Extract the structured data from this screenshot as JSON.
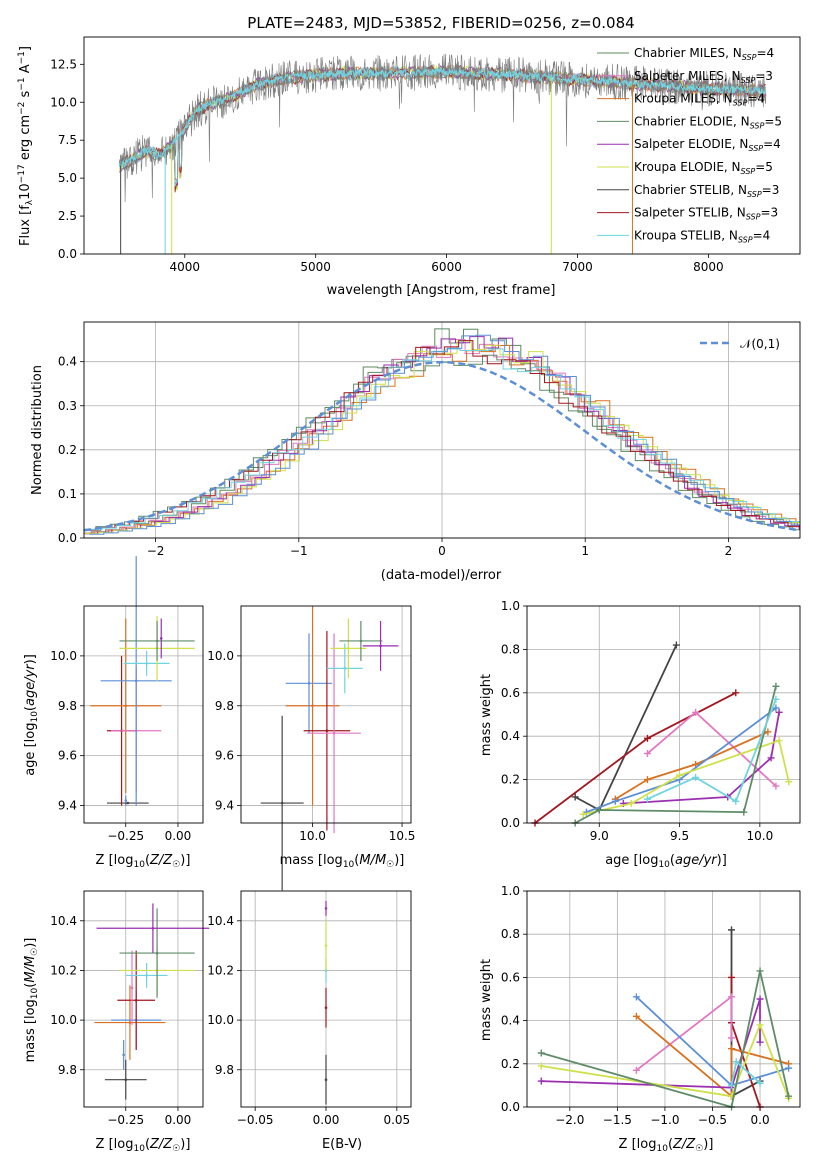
{
  "series_names": [
    "Chabrier MILES, N_SSP=4",
    "Salpeter MILES, N_SSP=3",
    "Kroupa MILES, N_SSP=4",
    "Chabrier ELODIE, N_SSP=5",
    "Salpeter ELODIE, N_SSP=4",
    "Kroupa ELODIE, N_SSP=5",
    "Chabrier STELIB, N_SSP=3",
    "Salpeter STELIB, N_SSP=3",
    "Kroupa STELIB, N_SSP=4"
  ],
  "colors": [
    "#5b8a5e",
    "#e377c2",
    "#d9711f",
    "#5f8c68",
    "#9a2fb0",
    "#cfe04a",
    "#444444",
    "#a3171f",
    "#6fd3e0",
    "#5c8fd6"
  ],
  "chart_data": [
    {
      "id": "spectrum",
      "type": "line",
      "title": "PLATE=2483, MJD=53852, FIBERID=0256, z=0.084",
      "xlabel": "wavelength [Angstrom, rest frame]",
      "ylabel": "Flux [f_λ 10^-17 erg cm^-2 s^-1 A^-1]",
      "xlim": [
        3230,
        8700
      ],
      "ylim": [
        0,
        14.3
      ],
      "xticks": [
        4000,
        5000,
        6000,
        7000,
        8000
      ],
      "yticks": [
        0.0,
        2.5,
        5.0,
        7.5,
        10.0,
        12.5
      ],
      "ytick_labels": [
        "0.0",
        "2.5",
        "5.0",
        "7.5",
        "10.0",
        "12.5"
      ],
      "legend": "top-right",
      "continuum": {
        "x": [
          3500,
          3600,
          3700,
          3800,
          3900,
          4000,
          4100,
          4200,
          4300,
          4400,
          4500,
          4600,
          4800,
          5000,
          5200,
          5500,
          6000,
          6500,
          7000,
          7500,
          8000,
          8500
        ],
        "y": [
          5.8,
          6.2,
          6.8,
          6.5,
          7.2,
          8.3,
          9.5,
          9.9,
          10.1,
          10.5,
          11.0,
          11.3,
          11.6,
          11.8,
          11.9,
          11.9,
          12.0,
          11.8,
          11.5,
          11.2,
          10.9,
          10.7
        ]
      }
    },
    {
      "id": "residuals",
      "type": "line",
      "xlabel": "(data-model)/error",
      "ylabel": "Normed distribution",
      "xlim": [
        -2.5,
        2.5
      ],
      "ylim": [
        0,
        0.49
      ],
      "xticks": [
        -2,
        -1,
        0,
        1,
        2
      ],
      "xtick_labels": [
        "−2",
        "−1",
        "0",
        "1",
        "2"
      ],
      "yticks": [
        0.0,
        0.1,
        0.2,
        0.3,
        0.4
      ],
      "ytick_labels": [
        "0.0",
        "0.1",
        "0.2",
        "0.3",
        "0.4"
      ],
      "reference_label": "𝒩(0,1)",
      "legend": "top-right"
    },
    {
      "id": "age_vs_Z",
      "type": "scatter",
      "xlabel": "Z [log10(Z/Z☉)]",
      "ylabel": "age [log10(age/yr)]",
      "xlim": [
        -0.45,
        0.12
      ],
      "ylim": [
        9.33,
        10.2
      ],
      "xticks": [
        -0.25,
        0.0
      ],
      "xtick_labels": [
        "−0.25",
        "0.00"
      ],
      "yticks": [
        9.4,
        9.6,
        9.8,
        10.0
      ],
      "ytick_labels": [
        "9.4",
        "9.6",
        "9.8",
        "10.0"
      ],
      "points": [
        {
          "x": -0.25,
          "y": 9.42,
          "xerr": 0.0,
          "yerr": 0.02,
          "c": 9
        },
        {
          "x": -0.24,
          "y": 9.41,
          "xerr": 0.1,
          "yerr": 0.0,
          "c": 6
        },
        {
          "x": -0.27,
          "y": 9.7,
          "xerr": 0.07,
          "yerr": 0.3,
          "c": 7
        },
        {
          "x": -0.25,
          "y": 9.8,
          "xerr": 0.17,
          "yerr": 0.35,
          "c": 2
        },
        {
          "x": -0.2,
          "y": 9.7,
          "xerr": 0.12,
          "yerr": 0.25,
          "c": 1
        },
        {
          "x": -0.2,
          "y": 9.9,
          "xerr": 0.17,
          "yerr": 0.5,
          "c": 9
        },
        {
          "x": -0.15,
          "y": 9.97,
          "xerr": 0.11,
          "yerr": 0.05,
          "c": 8
        },
        {
          "x": -0.1,
          "y": 10.03,
          "xerr": 0.18,
          "yerr": 0.13,
          "c": 5
        },
        {
          "x": -0.1,
          "y": 10.06,
          "xerr": 0.18,
          "yerr": 0.08,
          "c": 3
        },
        {
          "x": -0.08,
          "y": 10.07,
          "xerr": 0.0,
          "yerr": 0.08,
          "c": 4
        }
      ]
    },
    {
      "id": "age_vs_mass",
      "type": "scatter",
      "xlabel": "mass [log10(M/M☉)]",
      "ylabel": "",
      "xlim": [
        9.6,
        10.55
      ],
      "ylim": [
        9.33,
        10.2
      ],
      "xticks": [
        10.0,
        10.5
      ],
      "xtick_labels": [
        "10.0",
        "10.5"
      ],
      "yticks": [
        9.4,
        9.6,
        9.8,
        10.0
      ],
      "ytick_labels": [
        "9.4",
        "9.6",
        "9.8",
        "10.0"
      ],
      "points": [
        {
          "x": 9.83,
          "y": 9.41,
          "xerr": 0.12,
          "yerr": 0.35,
          "c": 6
        },
        {
          "x": 10.0,
          "y": 9.8,
          "xerr": 0.15,
          "yerr": 0.4,
          "c": 2
        },
        {
          "x": 9.98,
          "y": 9.89,
          "xerr": 0.13,
          "yerr": 0.2,
          "c": 9
        },
        {
          "x": 10.08,
          "y": 9.7,
          "xerr": 0.13,
          "yerr": 0.4,
          "c": 7
        },
        {
          "x": 10.12,
          "y": 9.69,
          "xerr": 0.15,
          "yerr": 0.4,
          "c": 1
        },
        {
          "x": 10.18,
          "y": 9.95,
          "xerr": 0.1,
          "yerr": 0.1,
          "c": 8
        },
        {
          "x": 10.2,
          "y": 10.03,
          "xerr": 0.1,
          "yerr": 0.12,
          "c": 5
        },
        {
          "x": 10.27,
          "y": 10.06,
          "xerr": 0.12,
          "yerr": 0.08,
          "c": 3
        },
        {
          "x": 10.38,
          "y": 10.04,
          "xerr": 0.1,
          "yerr": 0.1,
          "c": 4
        }
      ]
    },
    {
      "id": "mass_weight_vs_age",
      "type": "line",
      "xlabel": "age  [log10(age/yr)]",
      "ylabel": "mass weight",
      "xlim": [
        8.55,
        10.25
      ],
      "ylim": [
        0,
        1.0
      ],
      "xticks": [
        9.0,
        9.5,
        10.0
      ],
      "xtick_labels": [
        "9.0",
        "9.5",
        "10.0"
      ],
      "yticks": [
        0.0,
        0.2,
        0.4,
        0.6,
        0.8,
        1.0
      ],
      "ytick_labels": [
        "0.0",
        "0.2",
        "0.4",
        "0.6",
        "0.8",
        "1.0"
      ],
      "series": [
        {
          "c": 6,
          "x": [
            8.85,
            9.0,
            9.48
          ],
          "y": [
            0.12,
            0.06,
            0.82
          ]
        },
        {
          "c": 7,
          "x": [
            8.6,
            9.3,
            9.85
          ],
          "y": [
            0.0,
            0.39,
            0.6
          ]
        },
        {
          "c": 1,
          "x": [
            9.3,
            9.6,
            10.1
          ],
          "y": [
            0.32,
            0.51,
            0.17
          ]
        },
        {
          "c": 2,
          "x": [
            9.1,
            9.3,
            9.6,
            10.05
          ],
          "y": [
            0.11,
            0.2,
            0.27,
            0.42
          ]
        },
        {
          "c": 9,
          "x": [
            8.92,
            9.1,
            9.5,
            10.1
          ],
          "y": [
            0.05,
            0.1,
            0.2,
            0.53
          ]
        },
        {
          "c": 4,
          "x": [
            9.15,
            9.8,
            10.07,
            10.12
          ],
          "y": [
            0.09,
            0.12,
            0.3,
            0.51
          ]
        },
        {
          "c": 5,
          "x": [
            8.9,
            9.2,
            9.5,
            10.12,
            10.18
          ],
          "y": [
            0.04,
            0.09,
            0.22,
            0.38,
            0.19
          ]
        },
        {
          "c": 3,
          "x": [
            8.85,
            9.0,
            9.9,
            10.1
          ],
          "y": [
            0.0,
            0.06,
            0.05,
            0.63
          ]
        },
        {
          "c": 8,
          "x": [
            9.3,
            9.6,
            9.85,
            10.1
          ],
          "y": [
            0.11,
            0.21,
            0.1,
            0.57
          ]
        }
      ]
    },
    {
      "id": "mass_vs_Z",
      "type": "scatter",
      "xlabel": "Z [log10(Z/Z☉)]",
      "ylabel": "mass [log10(M/M☉)]",
      "xlim": [
        -0.45,
        0.12
      ],
      "ylim": [
        9.65,
        10.52
      ],
      "xticks": [
        -0.25,
        0.0
      ],
      "xtick_labels": [
        "−0.25",
        "0.00"
      ],
      "yticks": [
        9.8,
        10.0,
        10.2,
        10.4
      ],
      "ytick_labels": [
        "9.8",
        "10.0",
        "10.2",
        "10.4"
      ],
      "points": [
        {
          "x": -0.25,
          "y": 9.76,
          "xerr": 0.1,
          "yerr": 0.08,
          "c": 6
        },
        {
          "x": -0.26,
          "y": 9.86,
          "xerr": 0.0,
          "yerr": 0.06,
          "c": 9
        },
        {
          "x": -0.23,
          "y": 9.99,
          "xerr": 0.17,
          "yerr": 0.15,
          "c": 2
        },
        {
          "x": -0.2,
          "y": 10.0,
          "xerr": 0.12,
          "yerr": 0.12,
          "c": 9
        },
        {
          "x": -0.2,
          "y": 10.08,
          "xerr": 0.09,
          "yerr": 0.2,
          "c": 7
        },
        {
          "x": -0.22,
          "y": 10.13,
          "xerr": 0.0,
          "yerr": 0.15,
          "c": 1
        },
        {
          "x": -0.15,
          "y": 10.18,
          "xerr": 0.1,
          "yerr": 0.05,
          "c": 8
        },
        {
          "x": -0.1,
          "y": 10.2,
          "xerr": 0.18,
          "yerr": 0.1,
          "c": 5
        },
        {
          "x": -0.1,
          "y": 10.27,
          "xerr": 0.18,
          "yerr": 0.18,
          "c": 3
        },
        {
          "x": -0.12,
          "y": 10.37,
          "xerr": 0.27,
          "yerr": 0.1,
          "c": 4
        }
      ]
    },
    {
      "id": "mass_vs_ebv",
      "type": "scatter",
      "xlabel": "E(B-V)",
      "ylabel": "",
      "xlim": [
        -0.06,
        0.06
      ],
      "ylim": [
        9.65,
        10.52
      ],
      "xticks": [
        -0.05,
        0.0,
        0.05
      ],
      "xtick_labels": [
        "−0.05",
        "0.00",
        "0.05"
      ],
      "yticks": [
        9.8,
        10.0,
        10.2,
        10.4
      ],
      "ytick_labels": [
        "9.8",
        "10.0",
        "10.2",
        "10.4"
      ],
      "points": [
        {
          "x": 0.0,
          "y": 9.76,
          "xerr": 0.0,
          "yerr": 0.1,
          "c": 6
        },
        {
          "x": 0.0,
          "y": 10.05,
          "xerr": 0.0,
          "yerr": 0.08,
          "c": 7
        },
        {
          "x": 0.0,
          "y": 10.2,
          "xerr": 0.0,
          "yerr": 0.05,
          "c": 8
        },
        {
          "x": 0.0,
          "y": 10.3,
          "xerr": 0.0,
          "yerr": 0.1,
          "c": 5
        },
        {
          "x": 0.0,
          "y": 10.45,
          "xerr": 0.0,
          "yerr": 0.03,
          "c": 4
        }
      ]
    },
    {
      "id": "mass_weight_vs_Z",
      "type": "line",
      "xlabel": "Z [log10(Z/Z☉)]",
      "ylabel": "mass weight",
      "xlim": [
        -2.45,
        0.42
      ],
      "ylim": [
        0,
        1.0
      ],
      "xticks": [
        -2.0,
        -1.5,
        -1.0,
        -0.5,
        0.0
      ],
      "xtick_labels": [
        "−2.0",
        "−1.5",
        "−1.0",
        "−0.5",
        "0.0"
      ],
      "yticks": [
        0.0,
        0.2,
        0.4,
        0.6,
        0.8,
        1.0
      ],
      "ytick_labels": [
        "0.0",
        "0.2",
        "0.4",
        "0.6",
        "0.8",
        "1.0"
      ],
      "series": [
        {
          "c": 6,
          "x": [
            -0.3,
            -0.3,
            0.0
          ],
          "y": [
            0.82,
            0.05,
            0.12
          ]
        },
        {
          "c": 7,
          "x": [
            -0.3,
            -0.3,
            0.0
          ],
          "y": [
            0.6,
            0.39,
            0.0
          ]
        },
        {
          "c": 1,
          "x": [
            -1.3,
            -0.3,
            -0.3
          ],
          "y": [
            0.17,
            0.51,
            0.32
          ]
        },
        {
          "c": 2,
          "x": [
            -1.3,
            -0.3,
            -0.3,
            0.3
          ],
          "y": [
            0.42,
            0.05,
            0.27,
            0.2
          ]
        },
        {
          "c": 9,
          "x": [
            -1.3,
            -0.3,
            0.3
          ],
          "y": [
            0.51,
            0.1,
            0.18
          ]
        },
        {
          "c": 4,
          "x": [
            -2.3,
            -0.3,
            0.0,
            0.0
          ],
          "y": [
            0.12,
            0.09,
            0.5,
            0.3
          ]
        },
        {
          "c": 5,
          "x": [
            -2.3,
            -0.3,
            0.0,
            0.3
          ],
          "y": [
            0.19,
            0.05,
            0.38,
            0.04
          ]
        },
        {
          "c": 3,
          "x": [
            -2.3,
            -0.3,
            0.0,
            0.3
          ],
          "y": [
            0.25,
            0.0,
            0.63,
            0.05
          ]
        },
        {
          "c": 8,
          "x": [
            -0.3,
            -0.25,
            0.0
          ],
          "y": [
            0.1,
            0.21,
            0.11
          ]
        }
      ]
    }
  ]
}
